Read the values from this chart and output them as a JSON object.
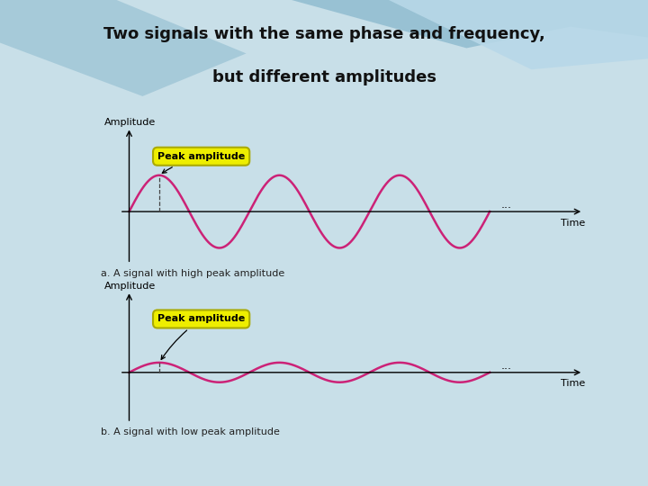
{
  "title_line1": "Two signals with the same phase and frequency,",
  "title_line2": "but different amplitudes",
  "slide_bg": "#c8dfe8",
  "header_bg": "#b0cdd8",
  "content_bg": "#dde8ed",
  "panel_bg": "#ffffff",
  "wave_color": "#cc2277",
  "axis_color": "#000000",
  "label_amplitude": "Amplitude",
  "label_time": "Time",
  "label_a": "a. A signal with high peak amplitude",
  "label_b": "b. A signal with low peak amplitude",
  "label_peak": "Peak amplitude",
  "peak_bubble_color": "#eeee00",
  "peak_bubble_edge": "#aaaa00",
  "dots": "...",
  "high_amplitude": 1.0,
  "low_amplitude": 0.28,
  "gold_line_color": "#cccc00",
  "swoosh1_color": "#90bcd0",
  "swoosh2_color": "#b8d8e8",
  "title_fontsize": 13,
  "caption_fontsize": 8,
  "axis_label_fontsize": 8,
  "peak_label_fontsize": 8
}
